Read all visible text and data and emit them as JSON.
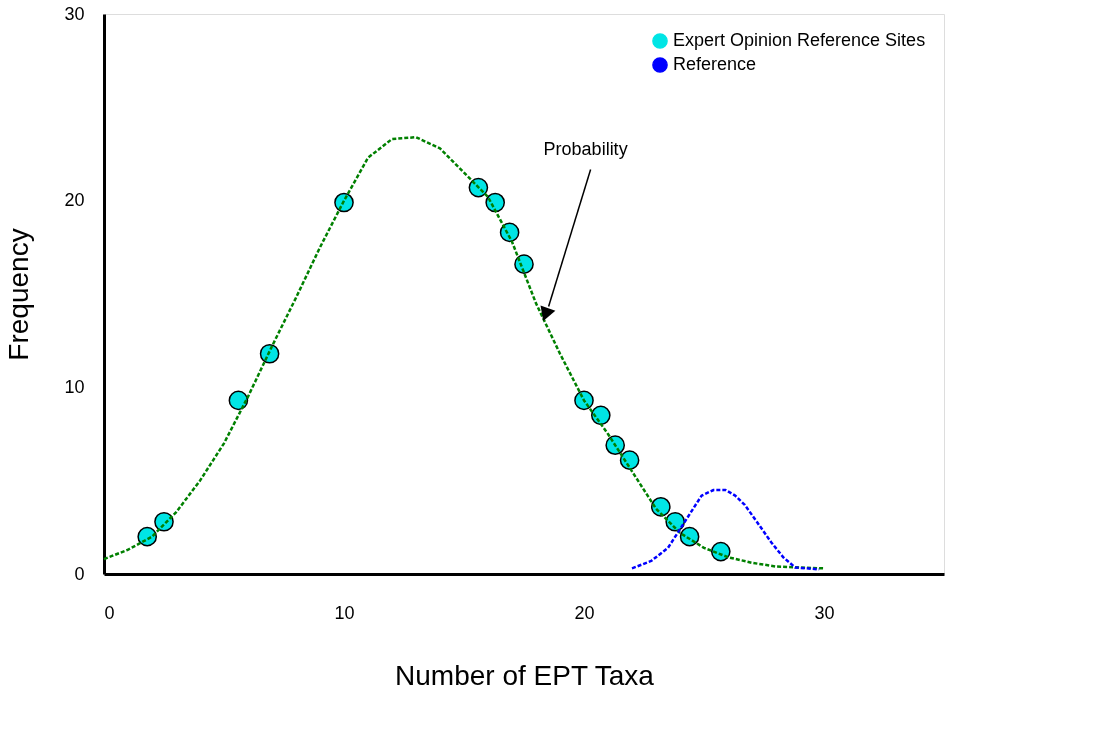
{
  "chart_data": {
    "type": "line",
    "xlabel": "Number of EPT Taxa",
    "ylabel": "Frequency",
    "xlim": [
      0,
      35
    ],
    "ylim": [
      0,
      30
    ],
    "xticks": [
      0,
      10,
      20,
      30
    ],
    "yticks": [
      0,
      10,
      20,
      30
    ],
    "grid": false,
    "legend": "top right",
    "annotations": [
      {
        "text": "Probability",
        "x": 18.4,
        "y": 13.9
      }
    ],
    "series": [
      {
        "color": "#008000",
        "line_style": "dashed",
        "marker": "none",
        "x": [
          0,
          1,
          2,
          3,
          4,
          5,
          6,
          7,
          8,
          9,
          10,
          11,
          12,
          13,
          14,
          15,
          16,
          17,
          18,
          19,
          20,
          21,
          22,
          23,
          24,
          25,
          26,
          27,
          28,
          29,
          30
        ],
        "values": [
          0.8,
          1.3,
          2.0,
          3.3,
          5.0,
          7.0,
          9.5,
          12.2,
          14.8,
          17.5,
          20.0,
          22.3,
          23.3,
          23.4,
          22.8,
          21.5,
          20.2,
          17.8,
          14.5,
          11.8,
          9.3,
          7.5,
          5.5,
          3.5,
          2.2,
          1.4,
          0.9,
          0.6,
          0.4,
          0.35,
          0.3
        ]
      },
      {
        "type": "scatter",
        "name": "Expert Opinion Reference Sites",
        "color": "#00e5e5",
        "marker": "circle",
        "x": [
          1.8,
          2.5,
          5.6,
          6.9,
          10.0,
          15.6,
          16.3,
          16.9,
          17.5,
          20.0,
          20.7,
          21.3,
          21.9,
          23.2,
          23.8,
          24.4,
          25.7
        ],
        "values": [
          2.0,
          2.8,
          9.3,
          11.8,
          19.9,
          20.7,
          19.9,
          18.3,
          16.6,
          9.3,
          8.5,
          6.9,
          6.1,
          3.6,
          2.8,
          2.0,
          1.2
        ]
      },
      {
        "name": "Reference",
        "color": "#0000ff",
        "line_style": "dashed",
        "marker": "none",
        "x": [
          22.0,
          22.8,
          23.5,
          24.2,
          24.9,
          25.4,
          25.9,
          26.3,
          26.7,
          27.2,
          27.8,
          28.3,
          28.8,
          29.8
        ],
        "values": [
          0.3,
          0.7,
          1.4,
          2.8,
          4.2,
          4.5,
          4.5,
          4.2,
          3.7,
          2.8,
          1.7,
          0.9,
          0.35,
          0.25
        ]
      }
    ]
  }
}
